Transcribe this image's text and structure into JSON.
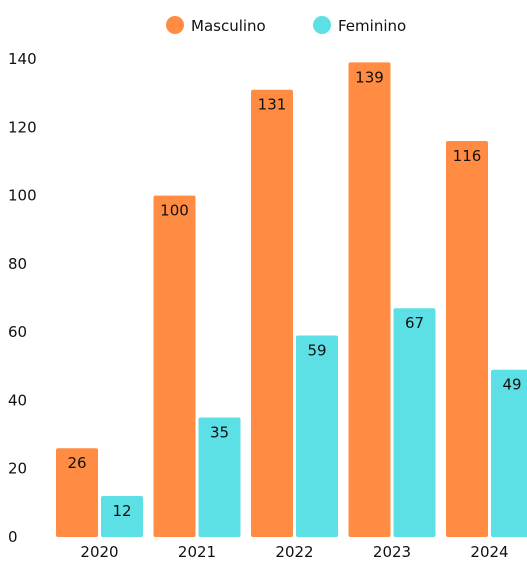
{
  "chart_data": {
    "type": "bar",
    "categories": [
      "2020",
      "2021",
      "2022",
      "2023",
      "2024"
    ],
    "series": [
      {
        "name": "Masculino",
        "color": "#FF8C42",
        "values": [
          26,
          100,
          131,
          139,
          116
        ]
      },
      {
        "name": "Feminino",
        "color": "#5CE0E6",
        "values": [
          12,
          35,
          59,
          67,
          49
        ]
      }
    ],
    "y_ticks": [
      0,
      20,
      40,
      60,
      80,
      100,
      120,
      140
    ],
    "ylim": [
      0,
      140
    ],
    "grid": false,
    "legend_position": "top-center",
    "data_labels": true
  }
}
